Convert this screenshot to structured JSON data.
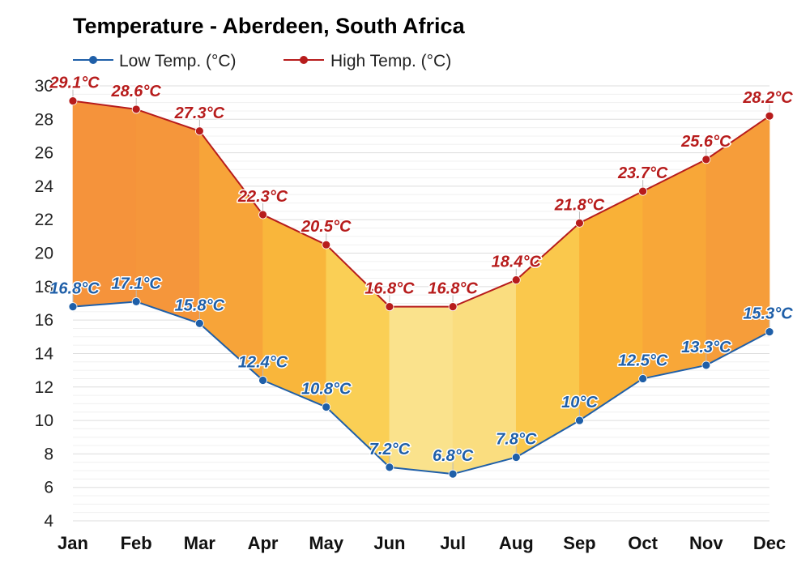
{
  "chart_data": {
    "type": "line",
    "title": "Temperature - Aberdeen, South Africa",
    "categories": [
      "Jan",
      "Feb",
      "Mar",
      "Apr",
      "May",
      "Jun",
      "Jul",
      "Aug",
      "Sep",
      "Oct",
      "Nov",
      "Dec"
    ],
    "series": [
      {
        "name": "Low Temp. (°C)",
        "color": "#1f5fa8",
        "values": [
          16.8,
          17.1,
          15.8,
          12.4,
          10.8,
          7.2,
          6.8,
          7.8,
          10,
          12.5,
          13.3,
          15.3
        ],
        "labels": [
          "16.8°C",
          "17.1°C",
          "15.8°C",
          "12.4°C",
          "10.8°C",
          "7.2°C",
          "6.8°C",
          "7.8°C",
          "10°C",
          "12.5°C",
          "13.3°C",
          "15.3°C"
        ]
      },
      {
        "name": "High Temp. (°C)",
        "color": "#b71c1c",
        "values": [
          29.1,
          28.6,
          27.3,
          22.3,
          20.5,
          16.8,
          16.8,
          18.4,
          21.8,
          23.7,
          25.6,
          28.2
        ],
        "labels": [
          "29.1°C",
          "28.6°C",
          "27.3°C",
          "22.3°C",
          "20.5°C",
          "16.8°C",
          "16.8°C",
          "18.4°C",
          "21.8°C",
          "23.7°C",
          "25.6°C",
          "28.2°C"
        ]
      }
    ],
    "ylim": [
      4,
      30
    ],
    "yticks": [
      "4",
      "6",
      "8",
      "10",
      "12",
      "14",
      "16",
      "18",
      "20",
      "22",
      "24",
      "26",
      "28",
      "30"
    ],
    "grid": true,
    "legend_position": "top-left",
    "fill_between": true
  }
}
